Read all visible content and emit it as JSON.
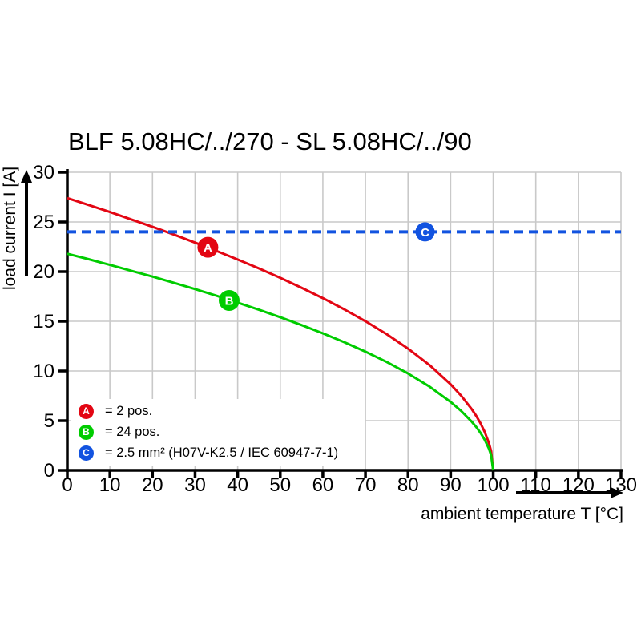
{
  "chart_data": {
    "type": "line",
    "title": "BLF 5.08HC/../270 - SL 5.08HC/../90",
    "xlabel": "ambient temperature T [°C]",
    "ylabel": "load current I [A]",
    "xlim": [
      0,
      130
    ],
    "ylim": [
      0,
      30
    ],
    "x_ticks": [
      0,
      10,
      20,
      30,
      40,
      50,
      60,
      70,
      80,
      90,
      100,
      110,
      120,
      130
    ],
    "y_ticks": [
      0,
      5,
      10,
      15,
      20,
      25,
      30
    ],
    "grid": true,
    "grid_color": "#c9c9c9",
    "axis_color": "#000000",
    "series": [
      {
        "name": "A",
        "label": "2 pos.",
        "color": "#e30613",
        "style": "solid",
        "points": [
          [
            0,
            27.4
          ],
          [
            5,
            26.71
          ],
          [
            10,
            26.0
          ],
          [
            15,
            25.26
          ],
          [
            20,
            24.51
          ],
          [
            25,
            23.73
          ],
          [
            30,
            22.92
          ],
          [
            35,
            22.09
          ],
          [
            40,
            21.22
          ],
          [
            45,
            20.32
          ],
          [
            50,
            19.37
          ],
          [
            55,
            18.38
          ],
          [
            60,
            17.33
          ],
          [
            65,
            16.21
          ],
          [
            70,
            15.01
          ],
          [
            75,
            13.7
          ],
          [
            80,
            12.25
          ],
          [
            85,
            10.61
          ],
          [
            90,
            8.66
          ],
          [
            92.5,
            7.5
          ],
          [
            95,
            6.13
          ],
          [
            96,
            5.48
          ],
          [
            97,
            4.75
          ],
          [
            98,
            3.87
          ],
          [
            99,
            2.74
          ],
          [
            99.5,
            1.94
          ],
          [
            100,
            0
          ]
        ]
      },
      {
        "name": "B",
        "label": "24 pos.",
        "color": "#00cc00",
        "style": "solid",
        "points": [
          [
            0,
            21.8
          ],
          [
            5,
            21.25
          ],
          [
            10,
            20.68
          ],
          [
            15,
            20.09
          ],
          [
            20,
            19.5
          ],
          [
            25,
            18.88
          ],
          [
            30,
            18.24
          ],
          [
            35,
            17.57
          ],
          [
            40,
            16.88
          ],
          [
            45,
            16.16
          ],
          [
            50,
            15.41
          ],
          [
            55,
            14.62
          ],
          [
            60,
            13.79
          ],
          [
            65,
            12.9
          ],
          [
            70,
            11.94
          ],
          [
            75,
            10.9
          ],
          [
            80,
            9.75
          ],
          [
            85,
            8.44
          ],
          [
            90,
            6.89
          ],
          [
            92.5,
            5.97
          ],
          [
            95,
            4.87
          ],
          [
            96,
            4.36
          ],
          [
            97,
            3.78
          ],
          [
            98,
            3.08
          ],
          [
            99,
            2.18
          ],
          [
            99.5,
            1.54
          ],
          [
            100,
            0
          ]
        ]
      },
      {
        "name": "C",
        "label": "2.5 mm² (H07V-K2.5 / IEC 60947-7-1)",
        "color": "#1253e0",
        "style": "dashed",
        "points": [
          [
            0,
            24
          ],
          [
            130,
            24
          ]
        ]
      }
    ],
    "markers": [
      {
        "letter": "A",
        "x": 33,
        "y": 22.45,
        "r": 13,
        "color": "#e30613"
      },
      {
        "letter": "B",
        "x": 38,
        "y": 17.1,
        "r": 13,
        "color": "#00cc00"
      },
      {
        "letter": "C",
        "x": 84,
        "y": 24,
        "r": 12,
        "color": "#1253e0"
      }
    ]
  },
  "legend": {
    "items": [
      {
        "letter": "A",
        "label": "= 2 pos.",
        "color": "#e30613"
      },
      {
        "letter": "B",
        "label": "= 24 pos.",
        "color": "#00cc00"
      },
      {
        "letter": "C",
        "label": "= 2.5 mm² (H07V-K2.5 / IEC 60947-7-1)",
        "color": "#1253e0"
      }
    ]
  }
}
